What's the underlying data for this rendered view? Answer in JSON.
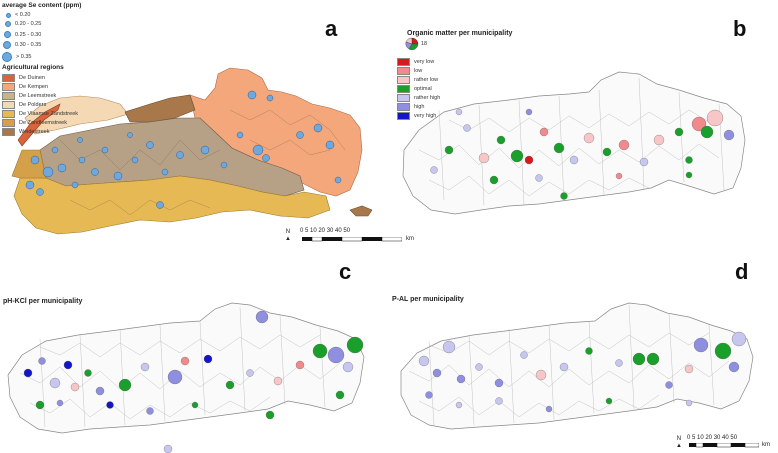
{
  "panels": {
    "a": {
      "label": "a",
      "legend_se_title": "average Se content (ppm)",
      "se_classes": [
        "< 0.20",
        "0.20 - 0.25",
        "0.25 - 0.30",
        "0.30 - 0.35",
        "> 0.35"
      ],
      "legend_regions_title": "Agricultural regions",
      "regions": [
        {
          "name": "De Duinen",
          "color": "#d9633a"
        },
        {
          "name": "De Kempen",
          "color": "#f3a77a"
        },
        {
          "name": "De Leemstreek",
          "color": "#c9b48a"
        },
        {
          "name": "De Polders",
          "color": "#f5d9b5"
        },
        {
          "name": "De Vlaamse Zandstreek",
          "color": "#e6b955"
        },
        {
          "name": "De Zandleemstreek",
          "color": "#d4a04a"
        },
        {
          "name": "Weidestreek",
          "color": "#a8784a"
        }
      ],
      "scale_numbers": "0  5 10   20    30    40    50",
      "scale_unit": "km",
      "north": "N"
    },
    "b": {
      "label": "b",
      "title": "Organic matter per municipality",
      "pie_legend_value": "18",
      "classes": [
        {
          "name": "very low",
          "color": "#d7191c"
        },
        {
          "name": "low",
          "color": "#f08a8c"
        },
        {
          "name": "rather low",
          "color": "#f7c6c7"
        },
        {
          "name": "optimal",
          "color": "#1a9f2a"
        },
        {
          "name": "rather high",
          "color": "#c6c6ef"
        },
        {
          "name": "high",
          "color": "#8f8fe0"
        },
        {
          "name": "very high",
          "color": "#1515c8"
        }
      ]
    },
    "c": {
      "label": "c",
      "title": "pH-KCl per municipality"
    },
    "d": {
      "label": "d",
      "title": "P-AL per municipality",
      "scale_numbers": "0 5 10  20   30   40   50",
      "scale_unit": "km",
      "north": "N"
    }
  }
}
